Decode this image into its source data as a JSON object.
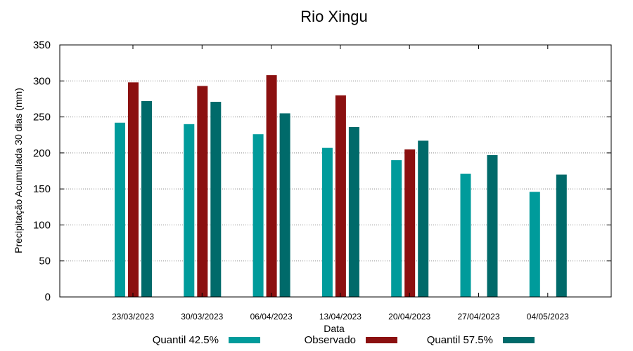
{
  "chart_data": {
    "type": "bar",
    "title": "Rio Xingu",
    "xlabel": "Data",
    "ylabel": "Precipitação Acumulada 30 dias (mm)",
    "ylim": [
      0,
      350
    ],
    "yticks": [
      0,
      50,
      100,
      150,
      200,
      250,
      300,
      350
    ],
    "grid": true,
    "legend_position": "bottom",
    "categories": [
      "23/03/2023",
      "30/03/2023",
      "06/04/2023",
      "13/04/2023",
      "20/04/2023",
      "27/04/2023",
      "04/05/2023"
    ],
    "series": [
      {
        "name": "Quantil 42.5%",
        "color": "#009b9b",
        "values": [
          242,
          240,
          226,
          207,
          190,
          171,
          146
        ]
      },
      {
        "name": "Observado",
        "color": "#8b1010",
        "values": [
          298,
          293,
          308,
          280,
          205,
          null,
          null
        ]
      },
      {
        "name": "Quantil 57.5%",
        "color": "#006a6a",
        "values": [
          272,
          271,
          255,
          236,
          217,
          197,
          170
        ]
      }
    ]
  }
}
